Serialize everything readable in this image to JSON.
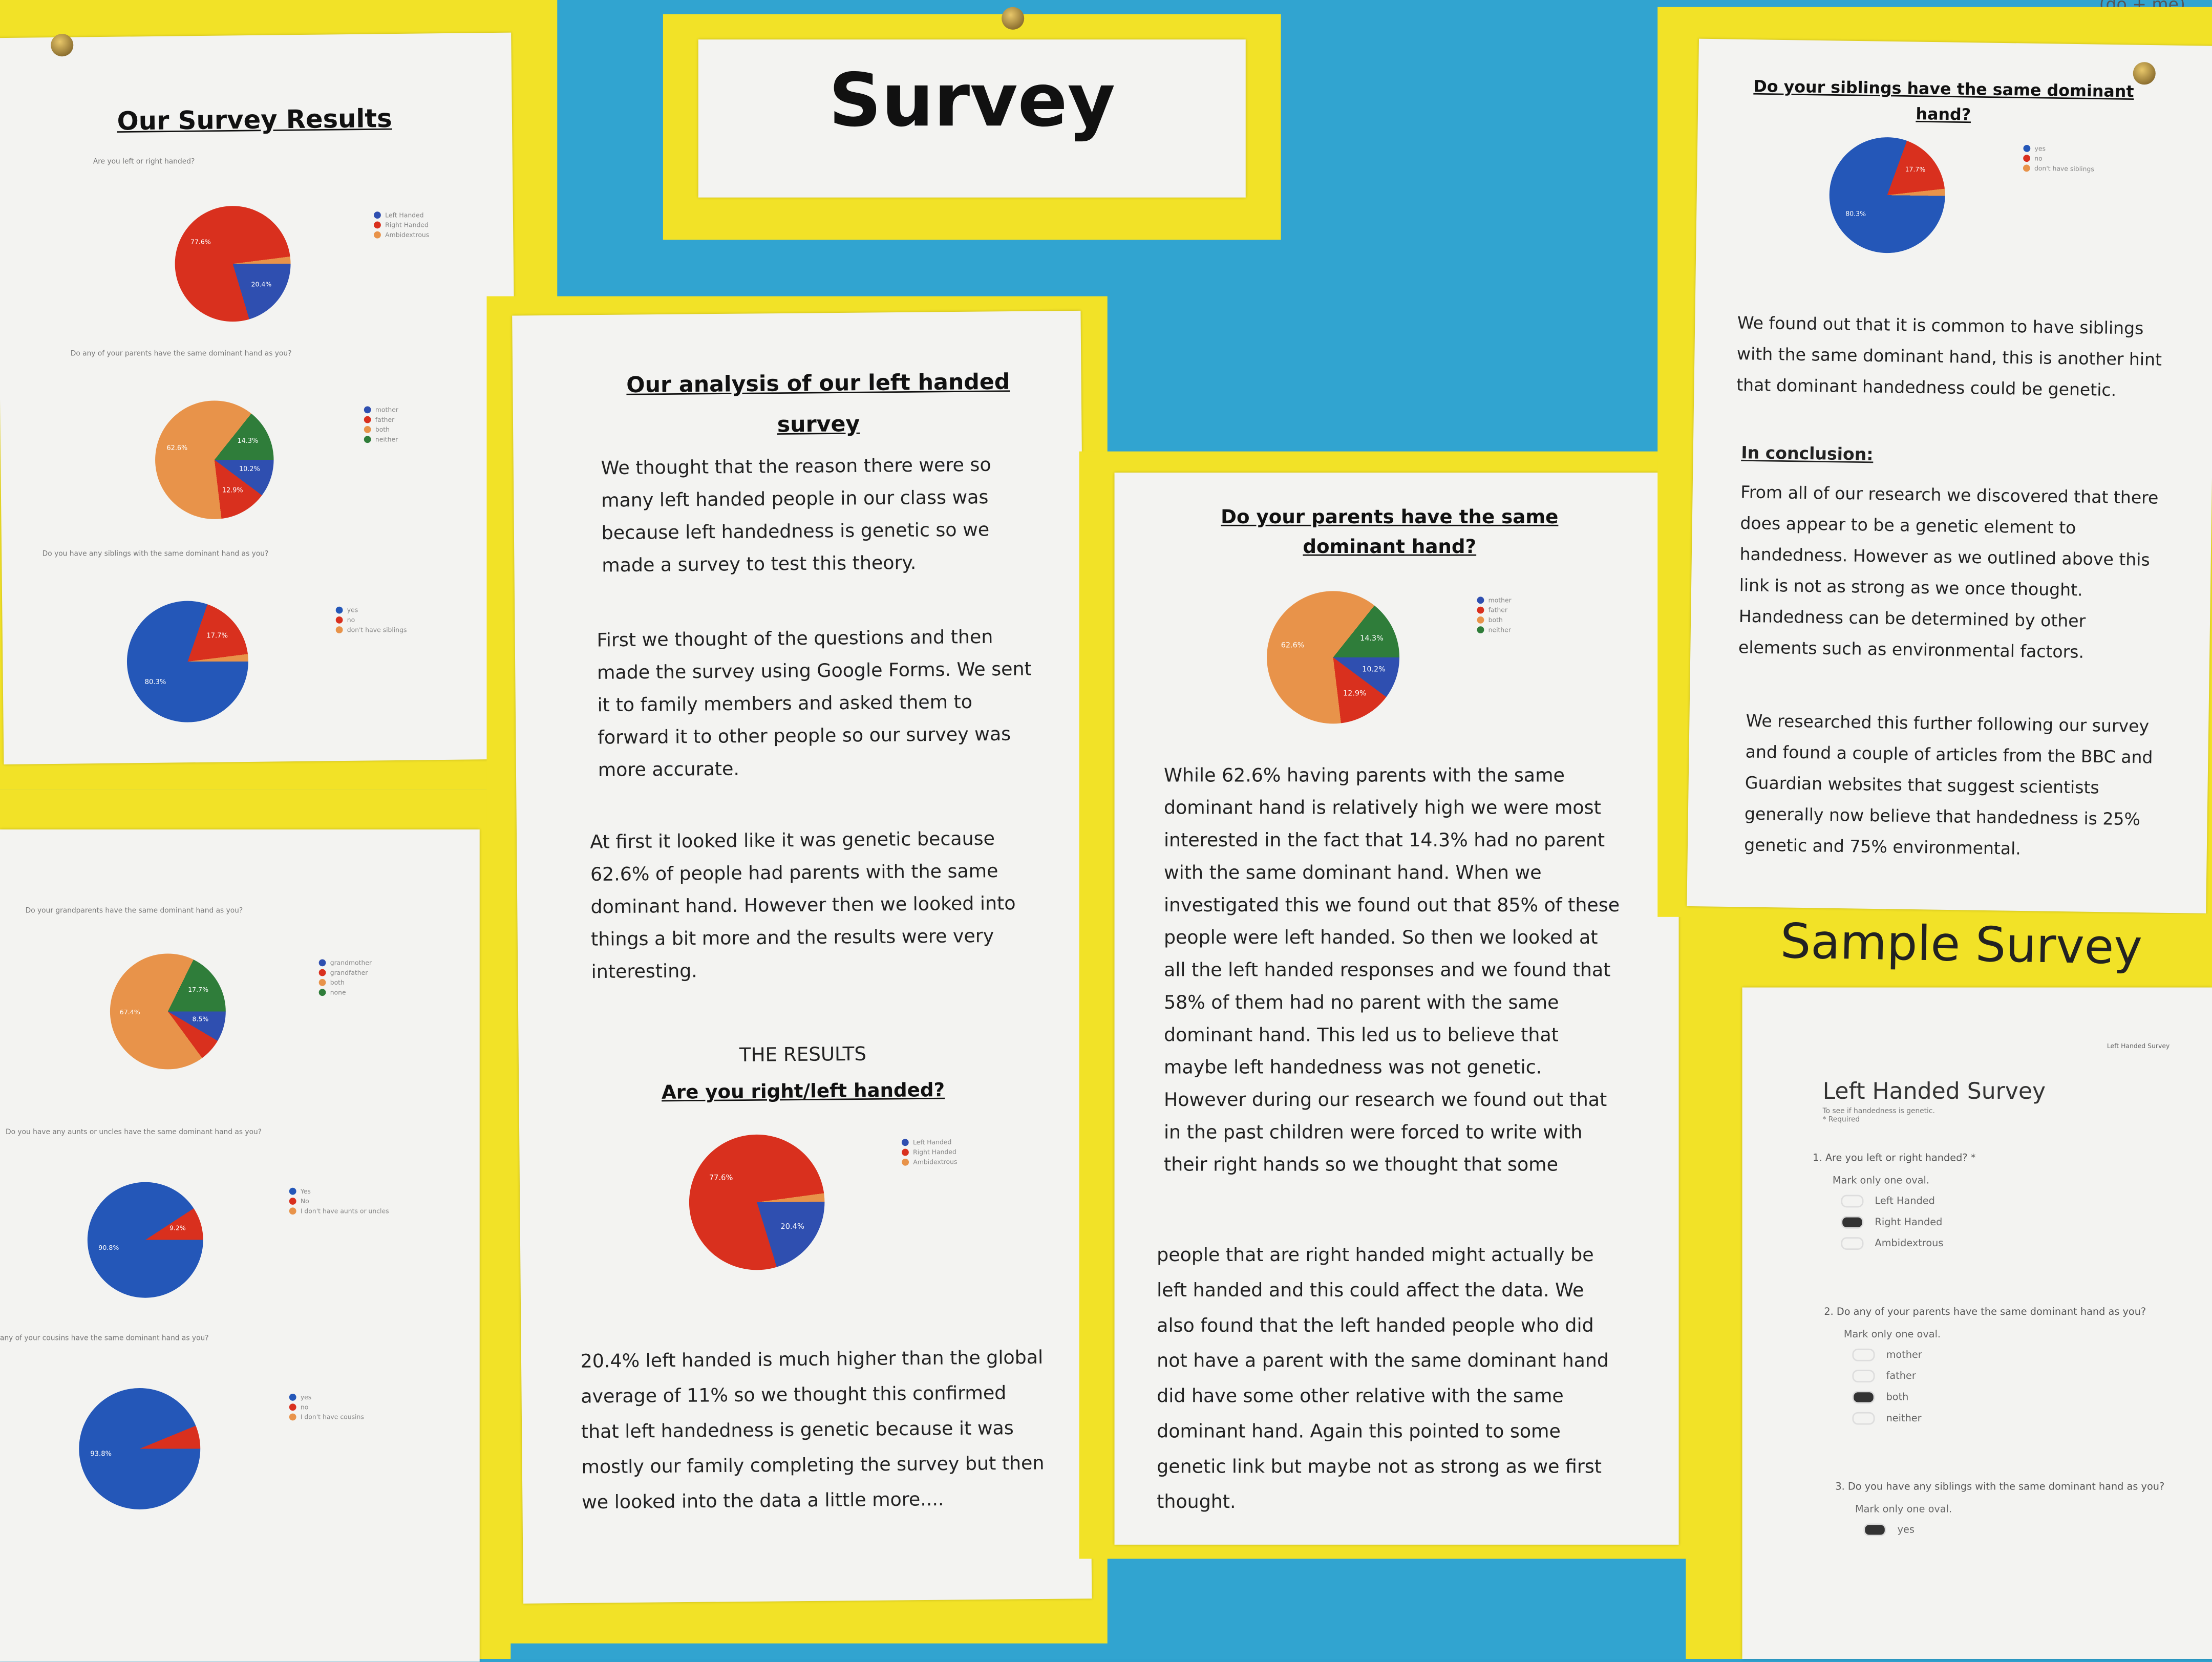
{
  "title": "Survey",
  "results_title": "Our Survey Results",
  "colors": {
    "blue": "#2f4fb0",
    "red": "#d9301e",
    "orange": "#e8934a",
    "green": "#2f7d3a",
    "yellow": "#f2e227",
    "board": "#31a4d0"
  },
  "charts": [
    {
      "type": "pie",
      "question": "Are you left or right handed?",
      "labels": [
        "Left Handed",
        "Right Handed",
        "Ambidextrous"
      ],
      "values": [
        20.4,
        77.6,
        2.0
      ],
      "colors": [
        "#2f4fb0",
        "#d9301e",
        "#e8934a"
      ],
      "shown": [
        "20.4%",
        "77.6%",
        ""
      ]
    },
    {
      "type": "pie",
      "question": "Do any of your parents have the same dominant hand as you?",
      "labels": [
        "mother",
        "father",
        "both",
        "neither"
      ],
      "values": [
        10.2,
        12.9,
        62.6,
        14.3
      ],
      "colors": [
        "#2f4fb0",
        "#d9301e",
        "#e8934a",
        "#2f7d3a"
      ],
      "shown": [
        "10.2%",
        "12.9%",
        "62.6%",
        "14.3%"
      ]
    },
    {
      "type": "pie",
      "question": "Do you have any siblings with the same dominant hand as you?",
      "labels": [
        "yes",
        "no",
        "don't have siblings"
      ],
      "values": [
        80.3,
        17.7,
        2.0
      ],
      "colors": [
        "#2457b8",
        "#d9301e",
        "#e8934a"
      ],
      "shown": [
        "80.3%",
        "17.7%",
        ""
      ]
    },
    {
      "type": "pie",
      "question": "Do your grandparents have the same dominant hand as you?",
      "labels": [
        "grandmother",
        "grandfather",
        "both",
        "none"
      ],
      "values": [
        8.5,
        6.4,
        67.4,
        17.7
      ],
      "colors": [
        "#2f4fb0",
        "#d9301e",
        "#e8934a",
        "#2f7d3a"
      ],
      "shown": [
        "8.5%",
        "",
        "67.4%",
        "17.7%"
      ]
    },
    {
      "type": "pie",
      "question": "Do you have any aunts or uncles have the same dominant hand as you?",
      "labels": [
        "Yes",
        "No",
        "I don't have aunts or uncles"
      ],
      "values": [
        90.8,
        9.2,
        0
      ],
      "colors": [
        "#2457b8",
        "#d9301e",
        "#e8934a"
      ],
      "shown": [
        "90.8%",
        "9.2%",
        ""
      ]
    },
    {
      "type": "pie",
      "question": "any of your cousins have the same dominant hand as you?",
      "labels": [
        "yes",
        "no",
        "I don't have cousins"
      ],
      "values": [
        93.8,
        6.2,
        0
      ],
      "colors": [
        "#2457b8",
        "#d9301e",
        "#e8934a"
      ],
      "shown": [
        "93.8%",
        "",
        ""
      ]
    }
  ],
  "analysis": {
    "title": "Our analysis of our left handed survey",
    "p1": "We thought that the reason there were so many left handed people in our class was because left handedness is genetic so we made a survey to test this theory.",
    "p2": "First we thought of the questions and then made the survey using Google Forms. We sent it to family members and asked them to forward it to other people so our survey was more accurate.",
    "p3": "At first it looked like it was genetic because 62.6% of people had parents with the same dominant hand. However then we looked into things a bit more and the results were very interesting.",
    "results_heading": "THE RESULTS",
    "results_sub": "Are you right/left handed?",
    "p4": "20.4% left handed is much higher than the global average of 11% so we thought this confirmed that left handedness is genetic because it was mostly our family completing the survey but then we looked into the data a little more...."
  },
  "parents": {
    "title": "Do your parents have the same dominant hand?",
    "p1": "While 62.6% having parents with the same dominant hand is relatively high we were most interested in the fact that 14.3% had no parent with the same dominant hand. When we investigated this we found out that 85% of these people were left handed. So then we looked at all the left handed responses and we found that 58% of them had no parent with the same dominant hand. This led us to believe that maybe left handedness was not genetic. However during our research we found out that in the past children were forced to write with their right hands so we thought that some",
    "p2": "people that are right handed might actually be left handed and this could affect the data. We also found that the left handed people who did not have a parent with the same dominant hand did have some other relative with the same dominant hand. Again this pointed to some genetic link but maybe not as strong as we first thought."
  },
  "siblings": {
    "title": "Do your siblings have the same dominant hand?",
    "p1": "We found out that it is common to have siblings with the same dominant hand, this is another hint that dominant handedness could be genetic.",
    "conclusion_heading": "In conclusion:",
    "p2": "From all of our research we discovered that there does appear to be a genetic element to handedness. However as we outlined above this link is not as strong as we once thought. Handedness can be determined by other elements such as environmental factors.",
    "p3": "We researched this further following our survey and found a couple of articles from the BBC and Guardian websites that suggest scientists generally now believe that handedness is 25% genetic and 75% environmental."
  },
  "sample": {
    "heading": "Sample Survey",
    "form_title": "Left Handed Survey",
    "form_desc": "To see if handedness is genetic.",
    "required": "* Required",
    "header_right": "Left Handed Survey",
    "instr": "Mark only one oval.",
    "questions": [
      {
        "num": "1.",
        "text": "Are you left or right handed? *",
        "options": [
          "Left Handed",
          "Right Handed",
          "Ambidextrous"
        ],
        "selected": 1
      },
      {
        "num": "2.",
        "text": "Do any of your parents have the same dominant hand as you?",
        "options": [
          "mother",
          "father",
          "both",
          "neither"
        ],
        "selected": 2
      },
      {
        "num": "3.",
        "text": "Do you have any siblings with the same dominant hand as you?",
        "options": [
          "yes"
        ],
        "selected": 0
      }
    ]
  },
  "corner_note": "(do + me)"
}
